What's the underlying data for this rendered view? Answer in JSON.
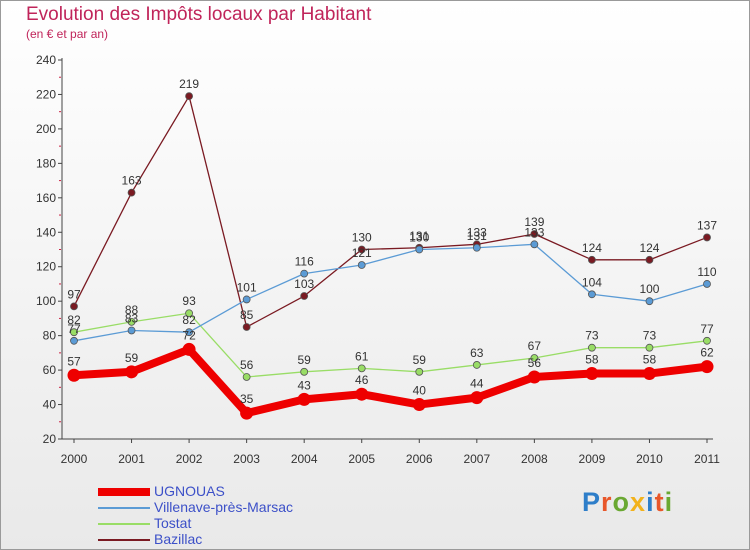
{
  "title": "Evolution des Impôts locaux par Habitant",
  "subtitle": "(en € et par an)",
  "logo_text": "Proxiti",
  "chart_data": {
    "type": "line",
    "title": "Evolution des Impôts locaux par Habitant",
    "subtitle": "(en € et par an)",
    "xlabel": "",
    "ylabel": "",
    "x": [
      "2000",
      "2001",
      "2002",
      "2003",
      "2004",
      "2005",
      "2006",
      "2007",
      "2008",
      "2009",
      "2010",
      "2011"
    ],
    "ylim": [
      20,
      240
    ],
    "yticks": [
      20,
      40,
      60,
      80,
      100,
      120,
      140,
      160,
      180,
      200,
      220,
      240
    ],
    "grid": false,
    "legend": "bottom-left",
    "series": [
      {
        "name": "UGNOUAS",
        "color": "#ee0000",
        "values": [
          57,
          59,
          72,
          35,
          43,
          46,
          40,
          44,
          56,
          58,
          58,
          62
        ]
      },
      {
        "name": "Villenave-près-Marsac",
        "color": "#5b9bd5",
        "values": [
          77,
          83,
          82,
          101,
          116,
          121,
          130,
          131,
          133,
          104,
          100,
          110
        ]
      },
      {
        "name": "Tostat",
        "color": "#99dd66",
        "values": [
          82,
          88,
          93,
          56,
          59,
          61,
          59,
          63,
          67,
          73,
          73,
          77
        ]
      },
      {
        "name": "Bazillac",
        "color": "#7a1a22",
        "values": [
          97,
          163,
          219,
          85,
          103,
          130,
          131,
          133,
          139,
          124,
          124,
          137
        ]
      }
    ],
    "value_labels": [
      {
        "series": 1,
        "index": 0,
        "text": "77"
      },
      {
        "series": 2,
        "index": 0,
        "text": "82"
      },
      {
        "series": 3,
        "index": 0,
        "text": "97"
      },
      {
        "series": 0,
        "index": 0,
        "text": "57"
      },
      {
        "series": 3,
        "index": 1,
        "text": "163"
      },
      {
        "series": 2,
        "index": 1,
        "text": "88"
      },
      {
        "series": 1,
        "index": 1,
        "text": "83"
      },
      {
        "series": 0,
        "index": 1,
        "text": "59"
      },
      {
        "series": 3,
        "index": 2,
        "text": "219"
      },
      {
        "series": 2,
        "index": 2,
        "text": "93"
      },
      {
        "series": 1,
        "index": 2,
        "text": "82"
      },
      {
        "series": 0,
        "index": 2,
        "text": "72"
      },
      {
        "series": 1,
        "index": 3,
        "text": "101"
      },
      {
        "series": 3,
        "index": 3,
        "text": "85"
      },
      {
        "series": 2,
        "index": 3,
        "text": "56"
      },
      {
        "series": 0,
        "index": 3,
        "text": "35"
      },
      {
        "series": 1,
        "index": 4,
        "text": "116"
      },
      {
        "series": 3,
        "index": 4,
        "text": "103"
      },
      {
        "series": 2,
        "index": 4,
        "text": "59"
      },
      {
        "series": 0,
        "index": 4,
        "text": "43"
      },
      {
        "series": 3,
        "index": 5,
        "text": "130"
      },
      {
        "series": 1,
        "index": 5,
        "text": "121"
      },
      {
        "series": 2,
        "index": 5,
        "text": "61"
      },
      {
        "series": 0,
        "index": 5,
        "text": "46"
      },
      {
        "series": 3,
        "index": 6,
        "text": "131"
      },
      {
        "series": 1,
        "index": 6,
        "text": "130"
      },
      {
        "series": 2,
        "index": 6,
        "text": "59"
      },
      {
        "series": 0,
        "index": 6,
        "text": "40"
      },
      {
        "series": 3,
        "index": 7,
        "text": "133"
      },
      {
        "series": 1,
        "index": 7,
        "text": "131"
      },
      {
        "series": 2,
        "index": 7,
        "text": "63"
      },
      {
        "series": 0,
        "index": 7,
        "text": "44"
      },
      {
        "series": 3,
        "index": 8,
        "text": "139"
      },
      {
        "series": 1,
        "index": 8,
        "text": "133"
      },
      {
        "series": 2,
        "index": 8,
        "text": "67"
      },
      {
        "series": 0,
        "index": 8,
        "text": "56"
      },
      {
        "series": 3,
        "index": 9,
        "text": "124"
      },
      {
        "series": 1,
        "index": 9,
        "text": "104"
      },
      {
        "series": 2,
        "index": 9,
        "text": "73"
      },
      {
        "series": 0,
        "index": 9,
        "text": "58"
      },
      {
        "series": 3,
        "index": 10,
        "text": "124"
      },
      {
        "series": 1,
        "index": 10,
        "text": "100"
      },
      {
        "series": 2,
        "index": 10,
        "text": "73"
      },
      {
        "series": 0,
        "index": 10,
        "text": "58"
      },
      {
        "series": 3,
        "index": 11,
        "text": "137"
      },
      {
        "series": 1,
        "index": 11,
        "text": "110"
      },
      {
        "series": 2,
        "index": 11,
        "text": "77"
      },
      {
        "series": 0,
        "index": 11,
        "text": "62"
      }
    ]
  },
  "legend": {
    "items": [
      {
        "label": "UGNOUAS",
        "color": "#ee0000"
      },
      {
        "label": "Villenave-près-Marsac",
        "color": "#5b9bd5"
      },
      {
        "label": "Tostat",
        "color": "#99dd66"
      },
      {
        "label": "Bazillac",
        "color": "#7a1a22"
      }
    ]
  }
}
